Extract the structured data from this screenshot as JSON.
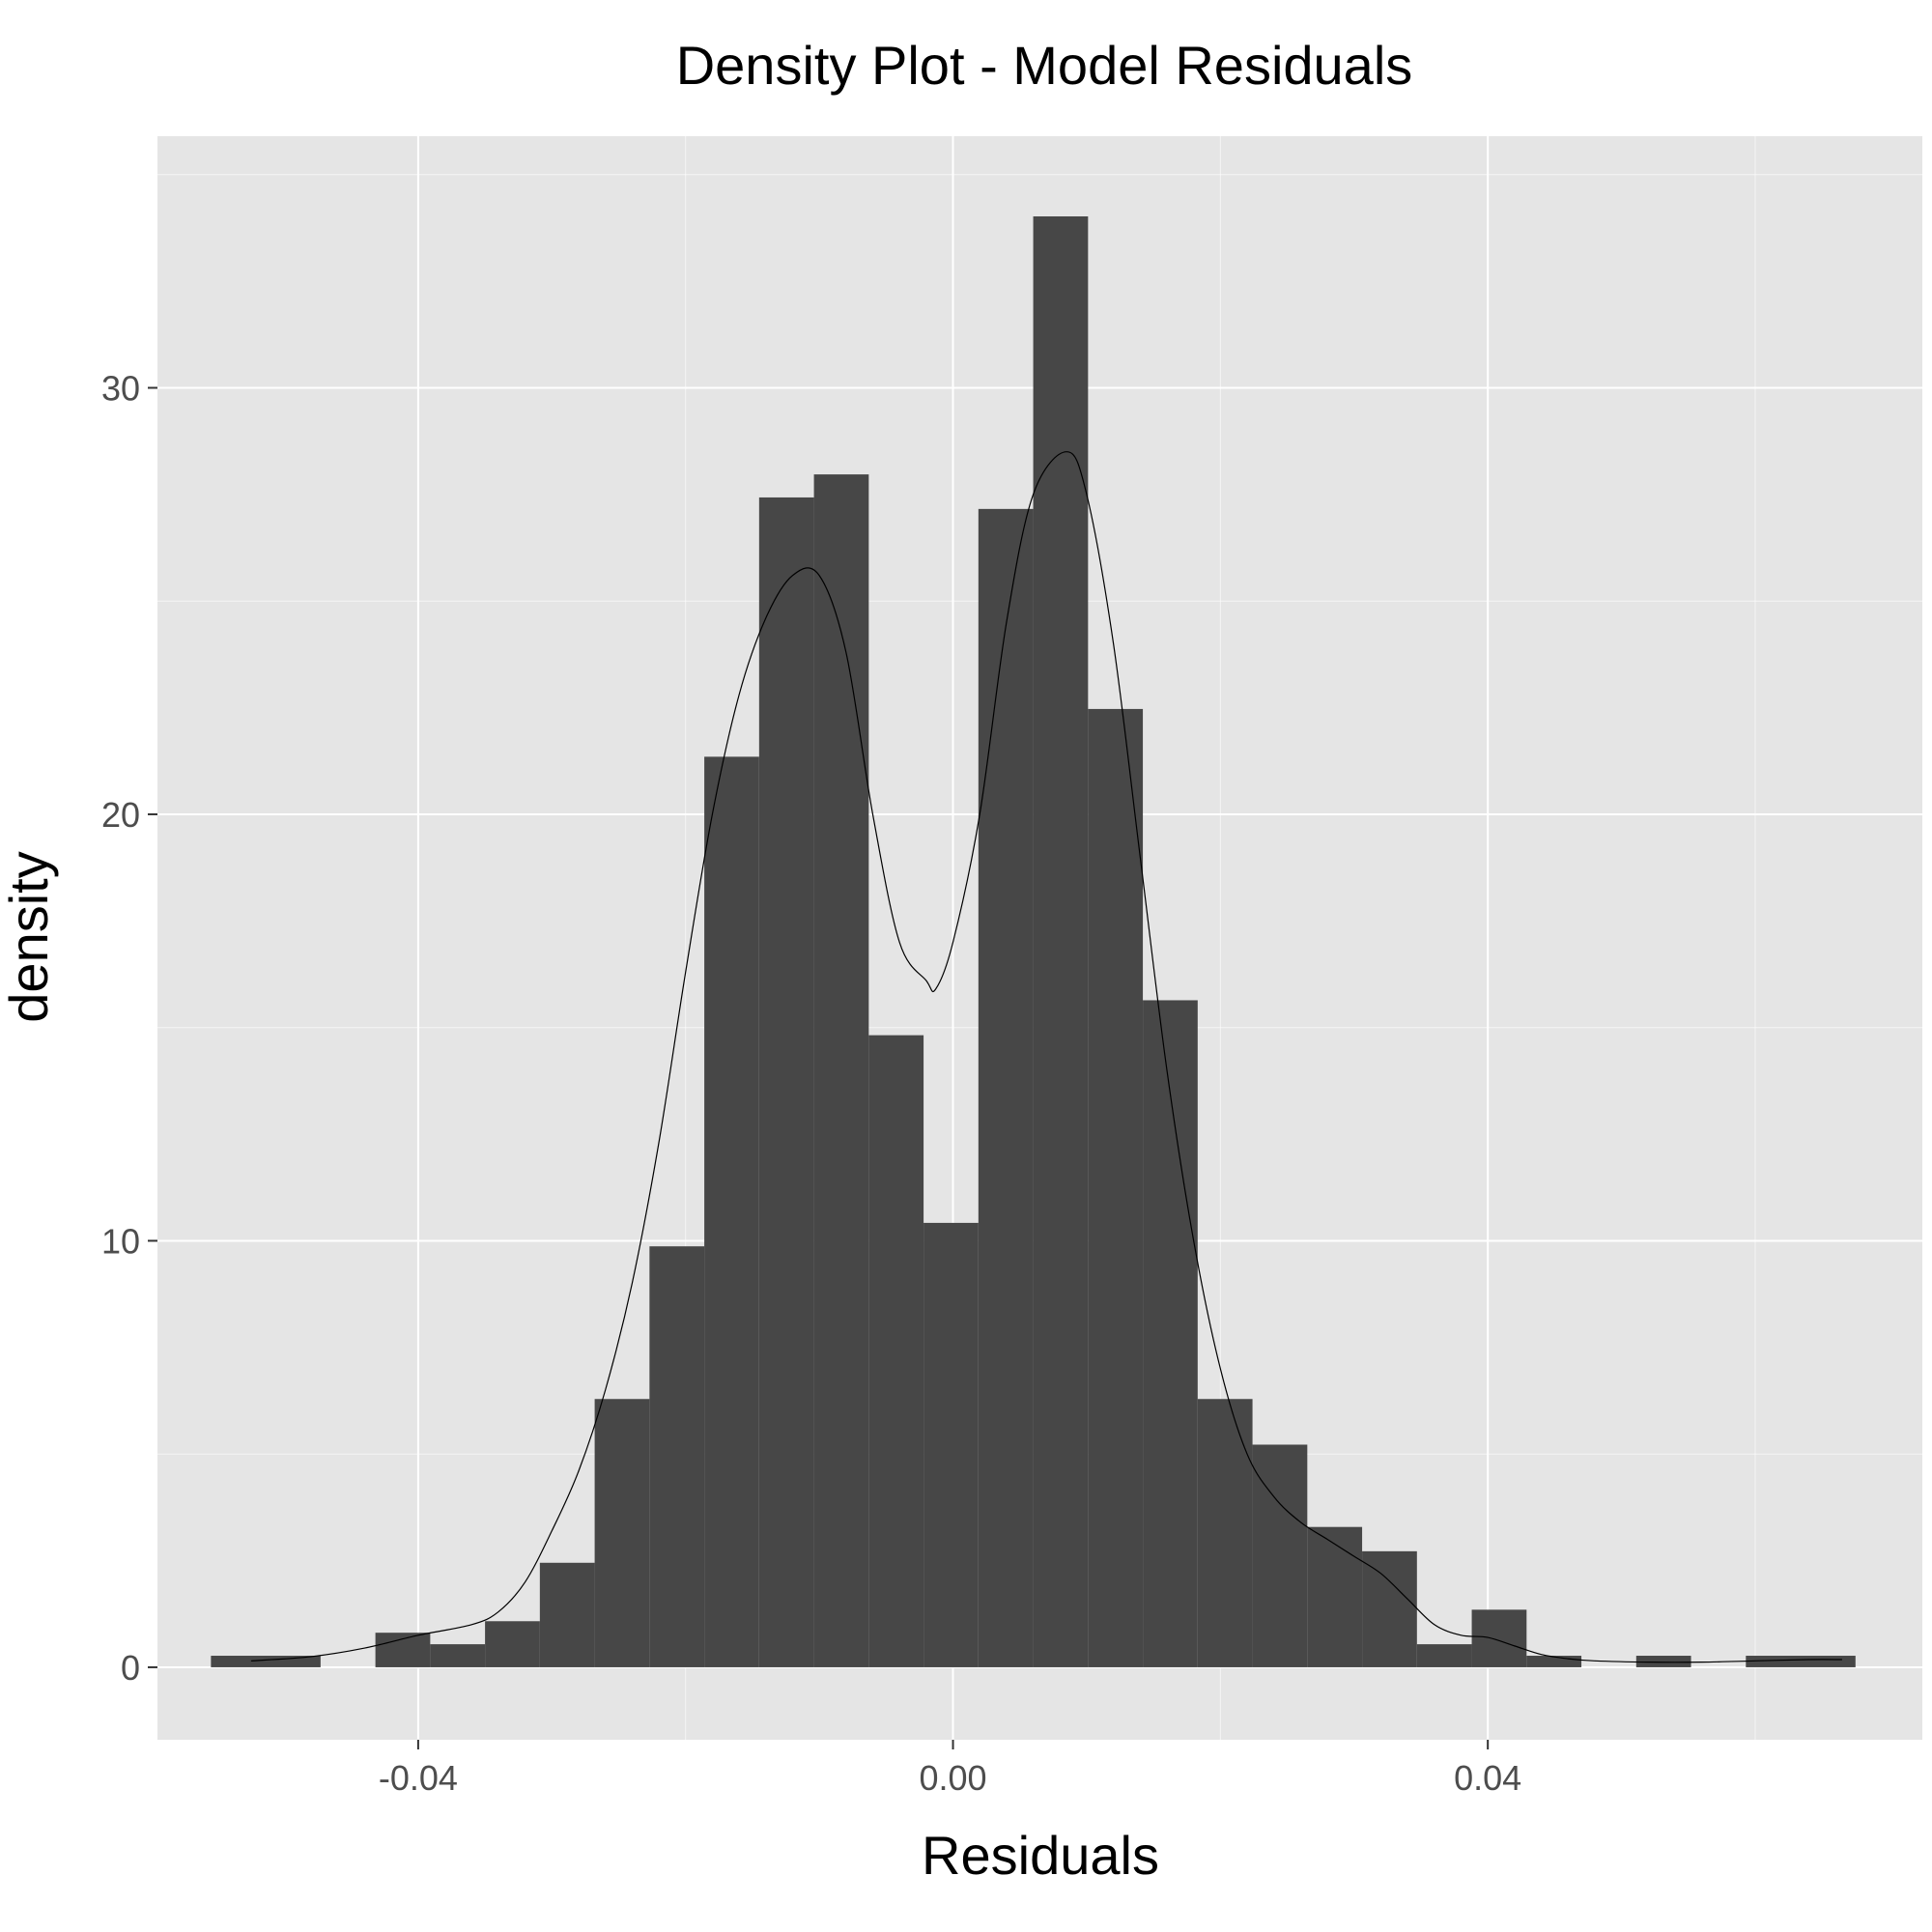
{
  "chart_data": {
    "type": "histogram",
    "title": "Density Plot - Model Residuals",
    "xlabel": "Residuals",
    "ylabel": "density",
    "xlim": [
      -0.0595,
      0.0725
    ],
    "ylim": [
      -1.7,
      35.9
    ],
    "x_ticks": [
      -0.04,
      0.0,
      0.04
    ],
    "x_tick_labels": [
      "-0.04",
      "0.00",
      "0.04"
    ],
    "y_ticks": [
      0,
      10,
      20,
      30
    ],
    "y_tick_labels": [
      "0",
      "10",
      "20",
      "30"
    ],
    "grid": true,
    "bin_width": 0.0041,
    "bars": [
      {
        "x0": -0.0555,
        "x1": -0.0473,
        "y": 0.27
      },
      {
        "x0": -0.0432,
        "x1": -0.0391,
        "y": 0.81
      },
      {
        "x0": -0.0391,
        "x1": -0.035,
        "y": 0.54
      },
      {
        "x0": -0.035,
        "x1": -0.0309,
        "y": 1.08
      },
      {
        "x0": -0.0309,
        "x1": -0.0268,
        "y": 2.45
      },
      {
        "x0": -0.0268,
        "x1": -0.0227,
        "y": 6.29
      },
      {
        "x0": -0.0227,
        "x1": -0.0186,
        "y": 9.87
      },
      {
        "x0": -0.0186,
        "x1": -0.0145,
        "y": 21.35
      },
      {
        "x0": -0.0145,
        "x1": -0.0104,
        "y": 27.43
      },
      {
        "x0": -0.0104,
        "x1": -0.0063,
        "y": 27.97
      },
      {
        "x0": -0.0063,
        "x1": -0.0022,
        "y": 14.82
      },
      {
        "x0": -0.0022,
        "x1": 0.0019,
        "y": 10.42
      },
      {
        "x0": 0.0019,
        "x1": 0.006,
        "y": 27.16
      },
      {
        "x0": 0.006,
        "x1": 0.0101,
        "y": 34.02
      },
      {
        "x0": 0.0101,
        "x1": 0.0142,
        "y": 22.47
      },
      {
        "x0": 0.0142,
        "x1": 0.0183,
        "y": 15.64
      },
      {
        "x0": 0.0183,
        "x1": 0.0224,
        "y": 6.29
      },
      {
        "x0": 0.0224,
        "x1": 0.0265,
        "y": 5.22
      },
      {
        "x0": 0.0265,
        "x1": 0.0306,
        "y": 3.29
      },
      {
        "x0": 0.0306,
        "x1": 0.0347,
        "y": 2.72
      },
      {
        "x0": 0.0347,
        "x1": 0.0388,
        "y": 0.54
      },
      {
        "x0": 0.0388,
        "x1": 0.0429,
        "y": 1.35
      },
      {
        "x0": 0.0429,
        "x1": 0.047,
        "y": 0.27
      },
      {
        "x0": 0.0511,
        "x1": 0.0552,
        "y": 0.27
      },
      {
        "x0": 0.0593,
        "x1": 0.0675,
        "y": 0.27
      }
    ],
    "density_curve": {
      "x": [
        -0.0525,
        -0.048,
        -0.044,
        -0.04,
        -0.036,
        -0.034,
        -0.032,
        -0.03,
        -0.028,
        -0.026,
        -0.024,
        -0.022,
        -0.02,
        -0.018,
        -0.016,
        -0.014,
        -0.012,
        -0.01,
        -0.008,
        -0.006,
        -0.004,
        -0.002,
        -0.0013,
        0.0,
        0.002,
        0.004,
        0.006,
        0.0085,
        0.01,
        0.012,
        0.014,
        0.016,
        0.018,
        0.02,
        0.022,
        0.024,
        0.026,
        0.028,
        0.03,
        0.032,
        0.034,
        0.036,
        0.038,
        0.04,
        0.042,
        0.044,
        0.046,
        0.048,
        0.052,
        0.056,
        0.06,
        0.064,
        0.0665
      ],
      "y": [
        0.15,
        0.25,
        0.45,
        0.75,
        1.0,
        1.3,
        2.0,
        3.2,
        4.6,
        6.5,
        9.0,
        12.3,
        16.3,
        20.0,
        22.8,
        24.6,
        25.6,
        25.6,
        23.8,
        20.0,
        17.0,
        16.1,
        15.9,
        17.0,
        20.0,
        24.5,
        27.5,
        28.5,
        27.5,
        24.0,
        19.0,
        14.0,
        10.0,
        7.0,
        5.0,
        4.0,
        3.4,
        3.0,
        2.6,
        2.2,
        1.6,
        1.0,
        0.75,
        0.7,
        0.5,
        0.3,
        0.2,
        0.15,
        0.12,
        0.12,
        0.15,
        0.18,
        0.18
      ]
    },
    "colors": {
      "panel_background": "#e5e5e5",
      "grid_line": "#ffffff",
      "bar_fill": "#474747",
      "curve": "#000000",
      "tick_text": "#4d4d4d",
      "tick_mark": "#333333"
    }
  }
}
